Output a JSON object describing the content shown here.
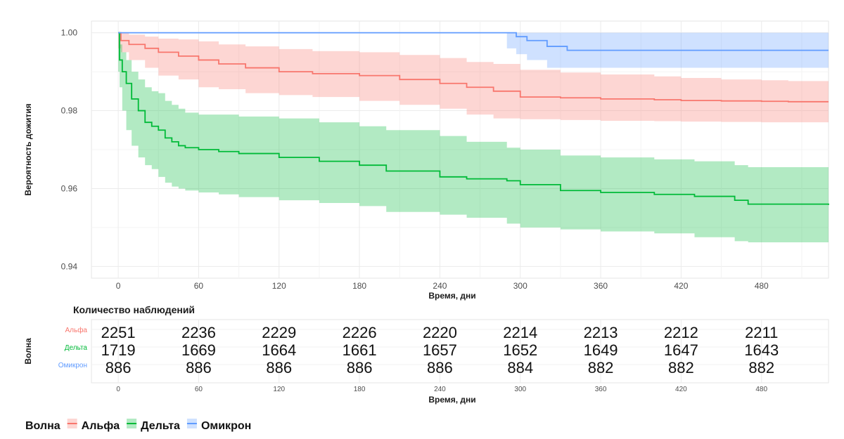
{
  "chart_data": [
    {
      "type": "line",
      "chart_kind": "kaplan-meier",
      "ylabel": "Вероятность дожития",
      "xlabel": "Время, дни",
      "xlim": [
        -20,
        530
      ],
      "ylim": [
        0.937,
        1.003
      ],
      "x_ticks": [
        "0",
        "60",
        "120",
        "180",
        "240",
        "300",
        "360",
        "420",
        "480"
      ],
      "y_ticks": [
        "0.94",
        "0.96",
        "0.98",
        "1.00"
      ],
      "grid": true,
      "series": [
        {
          "name": "Альфа",
          "color": "#F8766D",
          "band_color": "#F8766D",
          "x": [
            0,
            2,
            8,
            20,
            30,
            45,
            60,
            75,
            95,
            120,
            145,
            180,
            210,
            240,
            260,
            280,
            300,
            330,
            360,
            400,
            420,
            450,
            480,
            500,
            530
          ],
          "y": [
            1.0,
            0.998,
            0.997,
            0.996,
            0.995,
            0.994,
            0.993,
            0.992,
            0.991,
            0.99,
            0.9895,
            0.989,
            0.988,
            0.987,
            0.986,
            0.985,
            0.9835,
            0.9833,
            0.983,
            0.9828,
            0.9826,
            0.9825,
            0.9824,
            0.9823,
            0.9823
          ],
          "low": [
            1.0,
            0.996,
            0.995,
            0.993,
            0.991,
            0.989,
            0.988,
            0.986,
            0.9855,
            0.9845,
            0.984,
            0.9835,
            0.9825,
            0.9815,
            0.9805,
            0.979,
            0.978,
            0.9778,
            0.9776,
            0.9774,
            0.9773,
            0.9772,
            0.9771,
            0.977,
            0.977
          ],
          "high": [
            1.0,
            1.0,
            0.9995,
            0.999,
            0.9985,
            0.9983,
            0.9978,
            0.997,
            0.9965,
            0.9958,
            0.9953,
            0.995,
            0.9943,
            0.9935,
            0.9925,
            0.992,
            0.9905,
            0.9898,
            0.9893,
            0.9888,
            0.9884,
            0.988,
            0.9878,
            0.9876,
            0.9876
          ]
        },
        {
          "name": "Дельта",
          "color": "#00BA38",
          "band_color": "#00BA38",
          "x": [
            0,
            1,
            3,
            6,
            10,
            15,
            20,
            25,
            30,
            35,
            40,
            45,
            50,
            60,
            75,
            90,
            120,
            150,
            180,
            200,
            240,
            260,
            290,
            300,
            330,
            360,
            400,
            430,
            460,
            470,
            530
          ],
          "y": [
            1.0,
            0.993,
            0.99,
            0.987,
            0.983,
            0.98,
            0.977,
            0.976,
            0.975,
            0.973,
            0.972,
            0.971,
            0.9705,
            0.97,
            0.9695,
            0.969,
            0.968,
            0.967,
            0.966,
            0.9645,
            0.963,
            0.9625,
            0.962,
            0.961,
            0.9595,
            0.959,
            0.9585,
            0.958,
            0.957,
            0.956,
            0.9558
          ],
          "low": [
            1.0,
            0.99,
            0.986,
            0.98,
            0.975,
            0.971,
            0.968,
            0.966,
            0.965,
            0.963,
            0.9615,
            0.9605,
            0.96,
            0.9595,
            0.959,
            0.9585,
            0.9578,
            0.957,
            0.9563,
            0.9555,
            0.954,
            0.9533,
            0.9525,
            0.951,
            0.95,
            0.9495,
            0.949,
            0.9485,
            0.9475,
            0.9465,
            0.9462
          ],
          "high": [
            1.0,
            0.997,
            0.995,
            0.993,
            0.99,
            0.988,
            0.986,
            0.985,
            0.9845,
            0.9825,
            0.9815,
            0.9805,
            0.9795,
            0.979,
            0.979,
            0.9785,
            0.978,
            0.977,
            0.976,
            0.975,
            0.9735,
            0.972,
            0.9705,
            0.97,
            0.9685,
            0.968,
            0.9675,
            0.967,
            0.966,
            0.9655,
            0.9655
          ]
        },
        {
          "name": "Омикрон",
          "color": "#619CFF",
          "band_color": "#619CFF",
          "x": [
            0,
            290,
            297,
            305,
            320,
            335,
            530
          ],
          "y": [
            1.0,
            1.0,
            0.999,
            0.998,
            0.9965,
            0.9955,
            0.9955
          ],
          "low": [
            1.0,
            1.0,
            0.996,
            0.9945,
            0.993,
            0.991,
            0.991
          ],
          "high": [
            1.0,
            1.0,
            1.0,
            1.0,
            1.0,
            1.0,
            1.0
          ]
        }
      ]
    },
    {
      "type": "table",
      "title": "Количество наблюдений",
      "ylabel": "Волна",
      "xlabel": "Время, дни",
      "columns": [
        "0",
        "60",
        "120",
        "180",
        "240",
        "300",
        "360",
        "420",
        "480"
      ],
      "rows": [
        {
          "label": "Альфа",
          "color": "#F8766D",
          "values": [
            "2251",
            "2236",
            "2229",
            "2226",
            "2220",
            "2214",
            "2213",
            "2212",
            "2211"
          ]
        },
        {
          "label": "Дельта",
          "color": "#00BA38",
          "values": [
            "1719",
            "1669",
            "1664",
            "1661",
            "1657",
            "1652",
            "1649",
            "1647",
            "1643"
          ]
        },
        {
          "label": "Омикрон",
          "color": "#619CFF",
          "values": [
            "886",
            "886",
            "886",
            "886",
            "886",
            "884",
            "882",
            "882",
            "882"
          ]
        }
      ]
    }
  ],
  "legend": {
    "title": "Волна",
    "placement": "bottom-left",
    "items": [
      {
        "label": "Альфа",
        "color": "#F8766D"
      },
      {
        "label": "Дельта",
        "color": "#00BA38"
      },
      {
        "label": "Омикрон",
        "color": "#619CFF"
      }
    ]
  }
}
